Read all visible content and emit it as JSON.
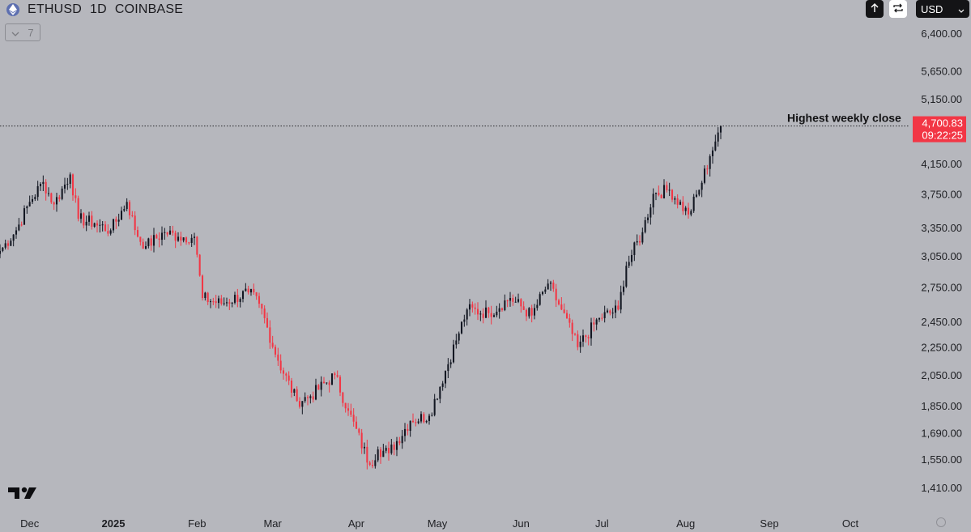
{
  "header": {
    "symbol": "ETHUSD",
    "interval": "1D",
    "exchange": "COINBASE",
    "collapse_label": "7",
    "currency": "USD",
    "icons": [
      "eth-icon",
      "collapse-chevron-icon",
      "arrow-up-icon",
      "replay-icon",
      "chevron-down-icon",
      "tradingview-logo-icon",
      "settings-icon"
    ]
  },
  "price_tag": {
    "price": "4,700.83",
    "countdown": "09:22:25",
    "color": "#f23645"
  },
  "annotation": {
    "text": "Highest weekly close",
    "level": 4700.83
  },
  "chart_data": {
    "type": "candlestick",
    "scale": "log",
    "up_color": "#131722",
    "down_color": "#f23645",
    "grid": false,
    "ylim": [
      1350,
      7000
    ],
    "y_ticks": [
      6400,
      5650,
      5150,
      4150,
      3750,
      3350,
      3050,
      2750,
      2450,
      2250,
      2050,
      1850,
      1690,
      1550,
      1410
    ],
    "y_tick_labels": [
      "6,400.00",
      "5,650.00",
      "5,150.00",
      "4,150.00",
      "3,750.00",
      "3,350.00",
      "3,050.00",
      "2,750.00",
      "2,450.00",
      "2,250.00",
      "2,050.00",
      "1,850.00",
      "1,690.00",
      "1,550.00",
      "1,410.00"
    ],
    "x_ticks": [
      {
        "label": "Dec",
        "date": "2024-12-01"
      },
      {
        "label": "2025",
        "date": "2025-01-01",
        "bold": true
      },
      {
        "label": "Feb",
        "date": "2025-02-01"
      },
      {
        "label": "Mar",
        "date": "2025-03-01"
      },
      {
        "label": "Apr",
        "date": "2025-04-01"
      },
      {
        "label": "May",
        "date": "2025-05-01"
      },
      {
        "label": "Jun",
        "date": "2025-06-01"
      },
      {
        "label": "Jul",
        "date": "2025-07-01"
      },
      {
        "label": "Aug",
        "date": "2025-08-01"
      },
      {
        "label": "Sep",
        "date": "2025-09-01"
      },
      {
        "label": "Oct",
        "date": "2025-10-01"
      }
    ],
    "xlim": [
      "2024-11-20",
      "2025-10-22"
    ],
    "close_anchors": [
      [
        "2024-11-20",
        3100
      ],
      [
        "2024-11-26",
        3320
      ],
      [
        "2024-12-01",
        3650
      ],
      [
        "2024-12-06",
        3900
      ],
      [
        "2024-12-10",
        3620
      ],
      [
        "2024-12-16",
        4000
      ],
      [
        "2024-12-19",
        3450
      ],
      [
        "2024-12-25",
        3400
      ],
      [
        "2024-12-31",
        3320
      ],
      [
        "2025-01-06",
        3650
      ],
      [
        "2025-01-10",
        3250
      ],
      [
        "2025-01-13",
        3150
      ],
      [
        "2025-01-20",
        3300
      ],
      [
        "2025-01-25",
        3250
      ],
      [
        "2025-01-31",
        3250
      ],
      [
        "2025-02-03",
        2650
      ],
      [
        "2025-02-10",
        2600
      ],
      [
        "2025-02-20",
        2700
      ],
      [
        "2025-02-24",
        2600
      ],
      [
        "2025-03-03",
        2150
      ],
      [
        "2025-03-10",
        1880
      ],
      [
        "2025-03-15",
        1910
      ],
      [
        "2025-03-24",
        2050
      ],
      [
        "2025-03-29",
        1820
      ],
      [
        "2025-04-06",
        1520
      ],
      [
        "2025-04-09",
        1600
      ],
      [
        "2025-04-13",
        1580
      ],
      [
        "2025-04-21",
        1760
      ],
      [
        "2025-04-28",
        1790
      ],
      [
        "2025-05-08",
        2300
      ],
      [
        "2025-05-12",
        2550
      ],
      [
        "2025-05-20",
        2520
      ],
      [
        "2025-05-28",
        2650
      ],
      [
        "2025-06-05",
        2500
      ],
      [
        "2025-06-11",
        2780
      ],
      [
        "2025-06-16",
        2550
      ],
      [
        "2025-06-22",
        2250
      ],
      [
        "2025-06-30",
        2480
      ],
      [
        "2025-07-07",
        2550
      ],
      [
        "2025-07-10",
        2950
      ],
      [
        "2025-07-16",
        3300
      ],
      [
        "2025-07-20",
        3750
      ],
      [
        "2025-07-26",
        3800
      ],
      [
        "2025-08-02",
        3500
      ],
      [
        "2025-08-06",
        3800
      ],
      [
        "2025-08-10",
        4250
      ],
      [
        "2025-08-13",
        4600
      ],
      [
        "2025-08-14",
        4700.83
      ]
    ]
  }
}
